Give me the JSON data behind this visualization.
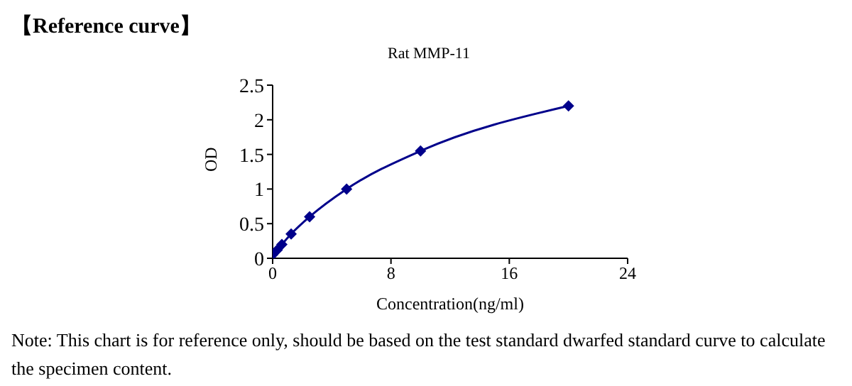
{
  "chart_data": {
    "type": "line",
    "title": "【Reference curve】",
    "subtitle": "Rat MMP-11",
    "xlabel": "Concentration(ng/ml)",
    "ylabel": "OD",
    "x": [
      0,
      0.3125,
      0.625,
      1.25,
      2.5,
      5,
      10,
      20
    ],
    "series": [
      {
        "color": "#00008b",
        "values": [
          0.05,
          0.12,
          0.2,
          0.35,
          0.6,
          1.0,
          1.55,
          2.2
        ]
      }
    ],
    "xlim": [
      0,
      24
    ],
    "xticks": [
      0,
      8,
      16,
      24
    ],
    "ylim": [
      0,
      2.5
    ],
    "yticks": [
      0,
      0.5,
      1,
      1.5,
      2,
      2.5
    ],
    "grid": false,
    "legend": false,
    "marker": "diamond",
    "line_style": "solid",
    "annotations": [
      "Note: This chart is for reference only, should be based on the test standard dwarfed standard curve to calculate the specimen content."
    ]
  }
}
